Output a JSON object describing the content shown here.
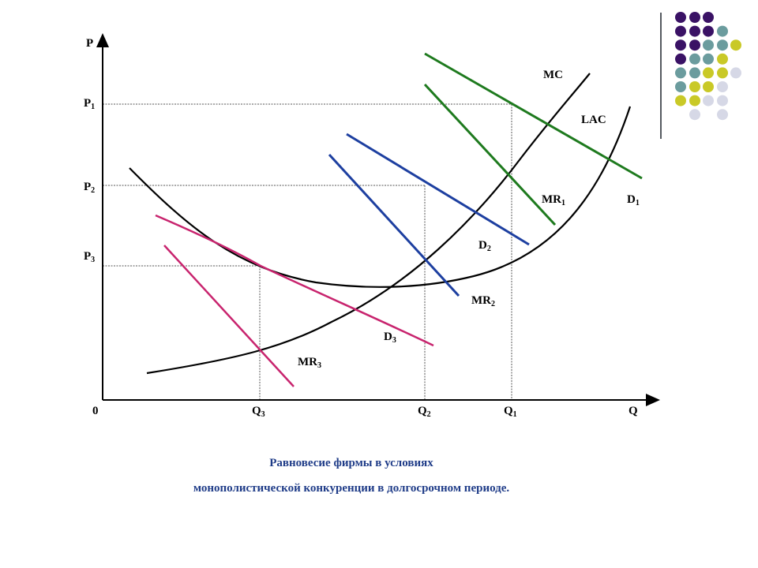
{
  "diagram": {
    "title_line1": "Равновесие фирмы в условиях",
    "title_line2": "монополистической конкуренции в долгосрочном периоде.",
    "axes": {
      "y_label": "P",
      "x_label": "Q",
      "origin_label": "0"
    },
    "price_levels": [
      {
        "base": "P",
        "sub": "1"
      },
      {
        "base": "P",
        "sub": "2"
      },
      {
        "base": "P",
        "sub": "3"
      }
    ],
    "quantity_levels": [
      {
        "base": "Q",
        "sub": "3"
      },
      {
        "base": "Q",
        "sub": "2"
      },
      {
        "base": "Q",
        "sub": "1"
      }
    ],
    "curve_labels": {
      "mc": {
        "base": "MC",
        "sub": ""
      },
      "lac": {
        "base": "LAC",
        "sub": ""
      },
      "d1": {
        "base": "D",
        "sub": "1"
      },
      "mr1": {
        "base": "MR",
        "sub": "1"
      },
      "d2": {
        "base": "D",
        "sub": "2"
      },
      "mr2": {
        "base": "MR",
        "sub": "2"
      },
      "d3": {
        "base": "D",
        "sub": "3"
      },
      "mr3": {
        "base": "MR",
        "sub": "3"
      }
    },
    "colors": {
      "cost_curves": "#000000",
      "group1": "#1e7a1e",
      "group2": "#1d3fa0",
      "group3": "#c8246e",
      "caption": "#1f3c88",
      "guides": "#555555"
    }
  },
  "decoration": {
    "dot_colors": {
      "P": "#3a1265",
      "T": "#6b9c9e",
      "Y": "#c9c927",
      "L": "#d6d8e6"
    },
    "dot_grid": [
      "PPP",
      "PPPT",
      "PPTTY",
      "PTTY",
      "TTYYL",
      "TYYL",
      "YYLL",
      "_L_L"
    ]
  }
}
